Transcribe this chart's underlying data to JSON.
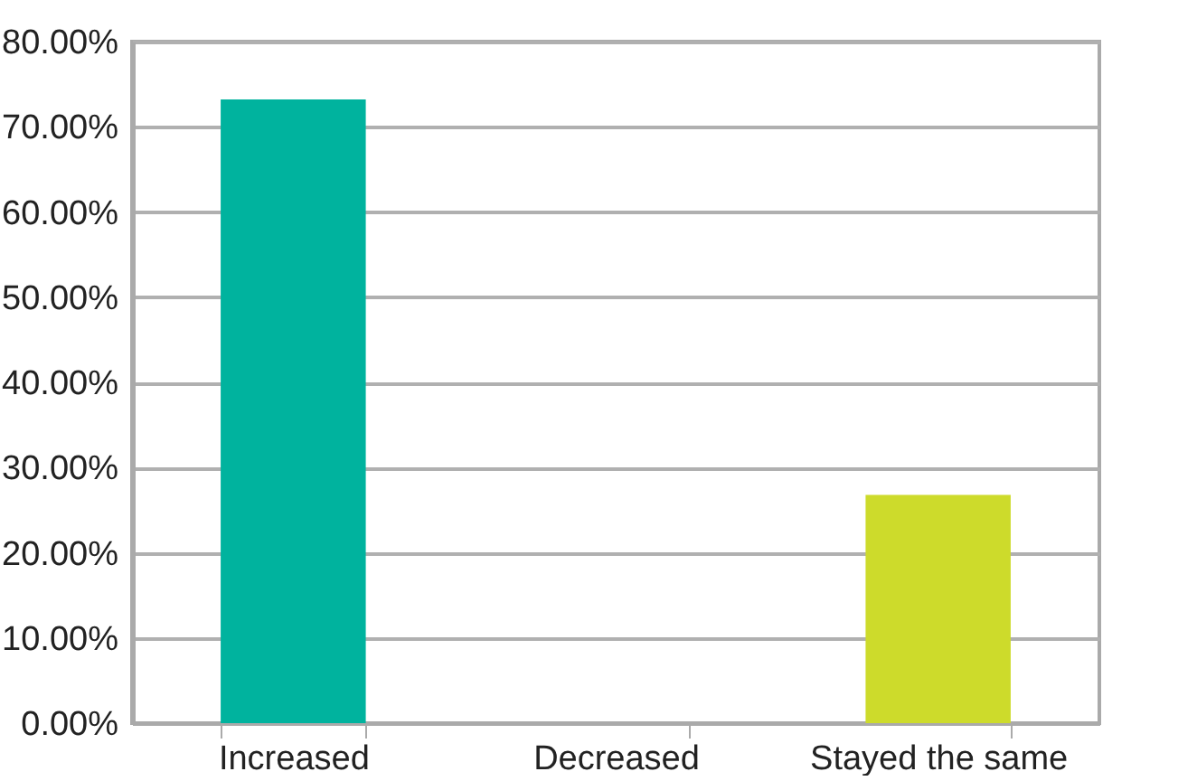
{
  "chart_data": {
    "type": "bar",
    "categories": [
      "Increased",
      "Decreased",
      "Stayed the same"
    ],
    "values": [
      73.2,
      0,
      26.8
    ],
    "colors": [
      "#00b39e",
      "#00b39e",
      "#cddb2b"
    ],
    "ylim": [
      0,
      80
    ],
    "yticks": [
      {
        "value": 0,
        "label": "0.00%"
      },
      {
        "value": 10,
        "label": "10.00%"
      },
      {
        "value": 20,
        "label": "20.00%"
      },
      {
        "value": 30,
        "label": "30.00%"
      },
      {
        "value": 40,
        "label": "40.00%"
      },
      {
        "value": 50,
        "label": "50.00%"
      },
      {
        "value": 60,
        "label": "60.00%"
      },
      {
        "value": 70,
        "label": "70.00%"
      },
      {
        "value": 80,
        "label": "80.00%"
      }
    ],
    "grid": "y"
  }
}
